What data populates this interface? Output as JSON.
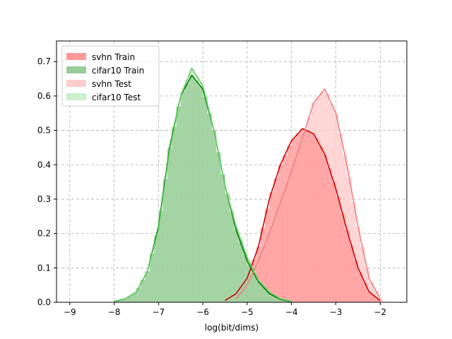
{
  "chart_data": {
    "type": "histogram-kde",
    "xlabel": "log(bit/dims)",
    "xlim": [
      -9.3,
      -1.4
    ],
    "ylim": [
      0,
      0.76
    ],
    "xticks": [
      -9,
      -8,
      -7,
      -6,
      -5,
      -4,
      -3,
      -2
    ],
    "yticks": [
      0.0,
      0.1,
      0.2,
      0.3,
      0.4,
      0.5,
      0.6,
      0.7
    ],
    "grid": true,
    "legend_position": "top-left",
    "series": [
      {
        "name": "svhn Train",
        "bar_color": "#ff9a9a",
        "line_color": "#d00000",
        "x": [
          -5.5,
          -5.25,
          -5.0,
          -4.75,
          -4.5,
          -4.25,
          -4.0,
          -3.75,
          -3.5,
          -3.25,
          -3.0,
          -2.75,
          -2.5,
          -2.25,
          -2.0
        ],
        "y": [
          0.005,
          0.025,
          0.07,
          0.16,
          0.3,
          0.4,
          0.47,
          0.505,
          0.49,
          0.43,
          0.33,
          0.21,
          0.1,
          0.03,
          0.005
        ]
      },
      {
        "name": "cifar10 Train",
        "bar_color": "#99cc99",
        "line_color": "#008000",
        "x": [
          -8.0,
          -7.75,
          -7.5,
          -7.25,
          -7.0,
          -6.75,
          -6.5,
          -6.25,
          -6.0,
          -5.75,
          -5.5,
          -5.25,
          -5.0,
          -4.75,
          -4.5,
          -4.25,
          -4.0
        ],
        "y": [
          0.003,
          0.01,
          0.03,
          0.09,
          0.22,
          0.45,
          0.6,
          0.66,
          0.62,
          0.5,
          0.34,
          0.21,
          0.12,
          0.06,
          0.025,
          0.008,
          0.002
        ]
      },
      {
        "name": "svhn Test",
        "bar_color": "#ffcccc",
        "line_color": "#f08080",
        "x": [
          -5.25,
          -5.0,
          -4.75,
          -4.5,
          -4.25,
          -4.0,
          -3.75,
          -3.5,
          -3.25,
          -3.0,
          -2.75,
          -2.5,
          -2.25,
          -2.0
        ],
        "y": [
          0.01,
          0.05,
          0.12,
          0.2,
          0.29,
          0.38,
          0.48,
          0.58,
          0.62,
          0.55,
          0.4,
          0.22,
          0.07,
          0.01
        ]
      },
      {
        "name": "cifar10 Test",
        "bar_color": "#ccf0cc",
        "line_color": "#66cc66",
        "x": [
          -8.0,
          -7.75,
          -7.5,
          -7.25,
          -7.0,
          -6.75,
          -6.5,
          -6.25,
          -6.0,
          -5.75,
          -5.5,
          -5.25,
          -5.0,
          -4.75,
          -4.5,
          -4.25,
          -4.0
        ],
        "y": [
          0.003,
          0.01,
          0.03,
          0.09,
          0.21,
          0.44,
          0.6,
          0.68,
          0.63,
          0.5,
          0.34,
          0.22,
          0.13,
          0.065,
          0.03,
          0.01,
          0.003
        ]
      }
    ]
  }
}
